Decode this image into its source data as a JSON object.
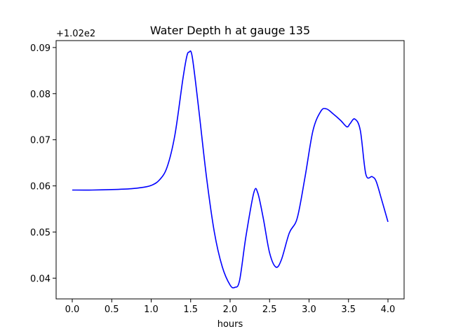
{
  "chart_data": {
    "type": "line",
    "title": "Water Depth h at gauge 135",
    "xlabel": "hours",
    "ylabel": "",
    "y_offset_label": "+1.02e2",
    "xlim": [
      0.0,
      4.0
    ],
    "ylim": [
      0.0355,
      0.0915
    ],
    "x_ticks": [
      0.0,
      0.5,
      1.0,
      1.5,
      2.0,
      2.5,
      3.0,
      3.5,
      4.0
    ],
    "x_tick_labels": [
      "0.0",
      "0.5",
      "1.0",
      "1.5",
      "2.0",
      "2.5",
      "3.0",
      "3.5",
      "4.0"
    ],
    "y_ticks": [
      0.04,
      0.05,
      0.06,
      0.07,
      0.08,
      0.09
    ],
    "y_tick_labels": [
      "0.04",
      "0.05",
      "0.06",
      "0.07",
      "0.08",
      "0.09"
    ],
    "grid": false,
    "legend": false,
    "line_color": "#0000ff",
    "series": [
      {
        "x": [
          0.0,
          0.25,
          0.5,
          0.75,
          0.9,
          1.0,
          1.1,
          1.2,
          1.3,
          1.4,
          1.45,
          1.48,
          1.52,
          1.6,
          1.7,
          1.8,
          1.9,
          2.0,
          2.06,
          2.12,
          2.2,
          2.3,
          2.35,
          2.42,
          2.5,
          2.58,
          2.65,
          2.75,
          2.85,
          2.95,
          3.05,
          3.15,
          3.22,
          3.3,
          3.4,
          3.48,
          3.52,
          3.58,
          3.65,
          3.72,
          3.8,
          3.85,
          3.92,
          4.0
        ],
        "y": [
          0.0591,
          0.0591,
          0.0592,
          0.0594,
          0.0597,
          0.0601,
          0.0612,
          0.064,
          0.071,
          0.083,
          0.088,
          0.089,
          0.088,
          0.077,
          0.062,
          0.05,
          0.0425,
          0.0385,
          0.038,
          0.0395,
          0.049,
          0.0585,
          0.0585,
          0.053,
          0.0455,
          0.0424,
          0.044,
          0.0498,
          0.053,
          0.062,
          0.072,
          0.0762,
          0.0767,
          0.0757,
          0.0742,
          0.0728,
          0.0735,
          0.0745,
          0.072,
          0.0625,
          0.062,
          0.061,
          0.057,
          0.0522
        ]
      }
    ]
  }
}
